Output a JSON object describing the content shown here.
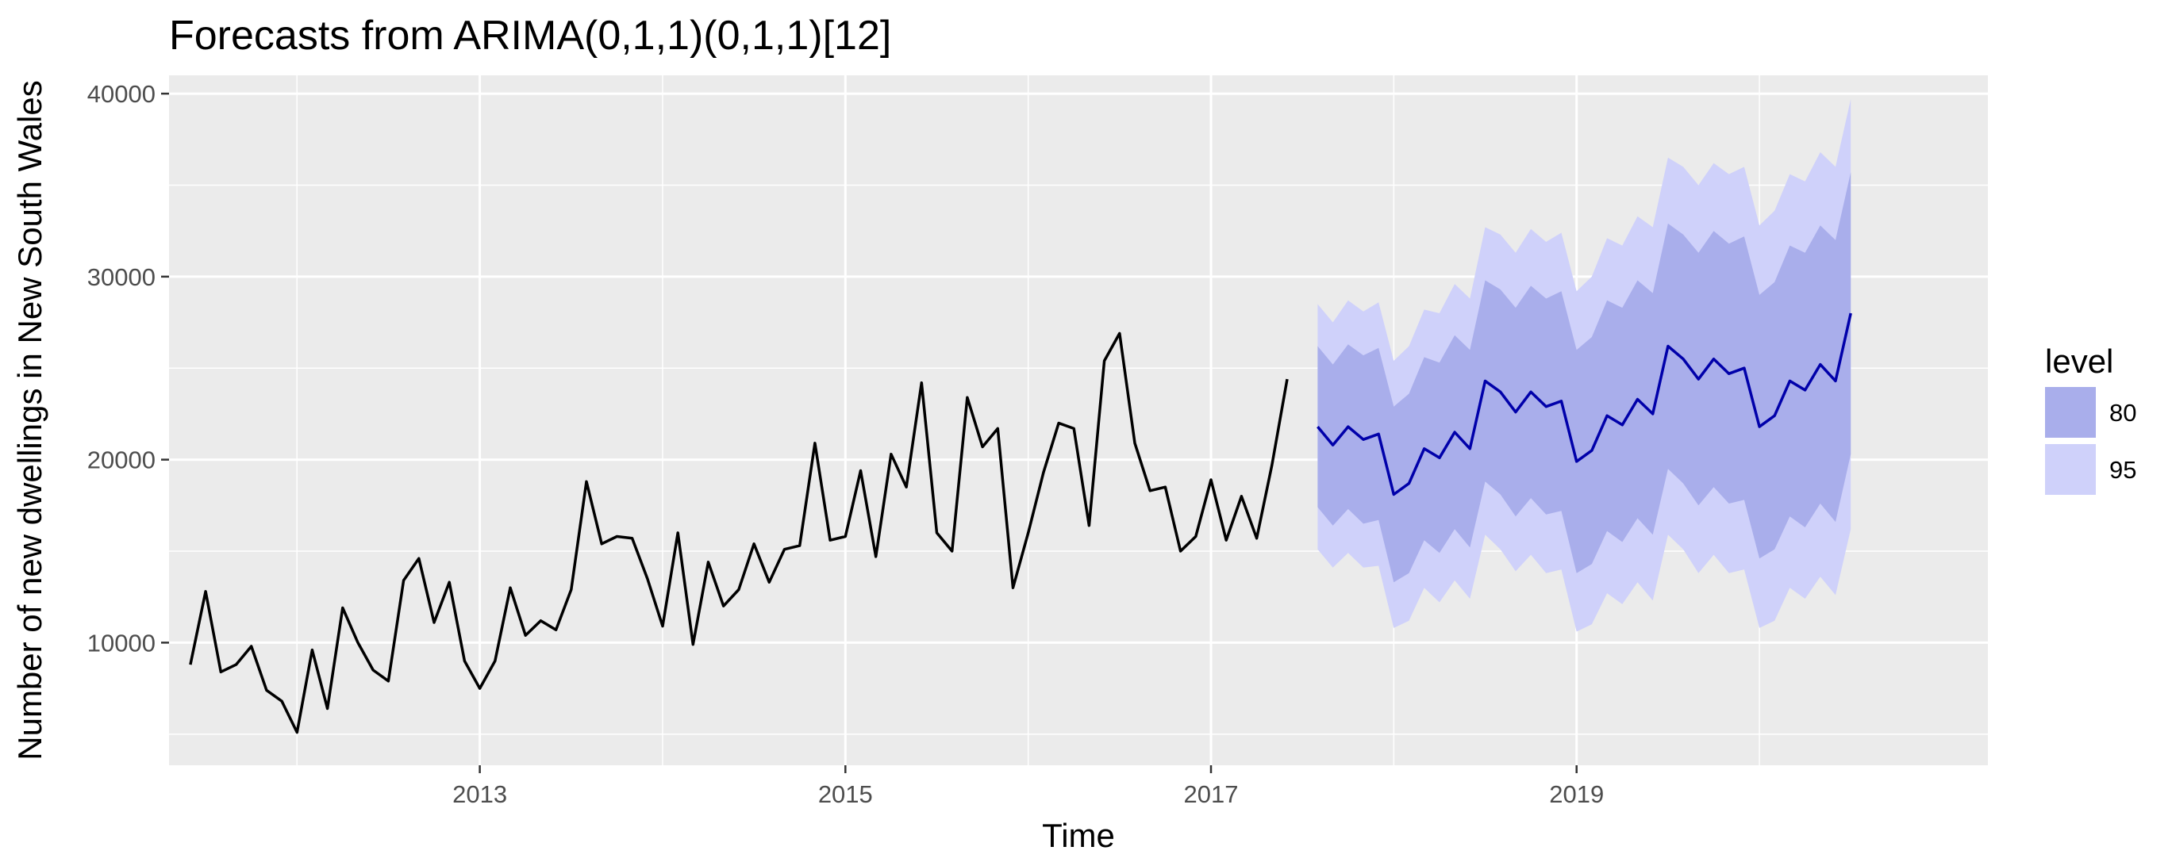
{
  "chart_data": {
    "type": "line",
    "title": "Forecasts from ARIMA(0,1,1)(0,1,1)[12]",
    "xlabel": "Time",
    "ylabel": "Number of new dwellings in New South Wales",
    "xlim": [
      2011.3,
      2021.25
    ],
    "ylim": [
      3300,
      41000
    ],
    "x_ticks": [
      2013,
      2015,
      2017,
      2019
    ],
    "x_tick_labels": [
      "2013",
      "2015",
      "2017",
      "2019"
    ],
    "y_ticks": [
      10000,
      20000,
      30000,
      40000
    ],
    "y_tick_labels": [
      "10000",
      "20000",
      "30000",
      "40000"
    ],
    "grid": true,
    "legend": {
      "title": "level",
      "position": "right",
      "entries": [
        {
          "label": "80",
          "color": "#a9aeeb"
        },
        {
          "label": "95",
          "color": "#cfd1fa"
        }
      ]
    },
    "colors": {
      "panel": "#ebebeb",
      "grid_major": "#ffffff",
      "observed_line": "#000000",
      "forecast_line": "#0000aa",
      "band_80": "#a9aeeb",
      "band_95": "#cfd1fa"
    },
    "observed": {
      "x_start": 2011.4167,
      "step": 0.0833333,
      "values": [
        8800,
        12800,
        8400,
        8800,
        9800,
        7400,
        6800,
        5100,
        9600,
        6400,
        11900,
        10000,
        8500,
        7900,
        13400,
        14600,
        11100,
        13300,
        9000,
        7500,
        9000,
        13000,
        10400,
        11200,
        10700,
        12900,
        18800,
        15400,
        15800,
        15700,
        13500,
        10900,
        16000,
        9900,
        14400,
        12000,
        12900,
        15400,
        13300,
        15100,
        15300,
        20900,
        15600,
        15800,
        19400,
        14700,
        20300,
        18500,
        24200,
        16000,
        15000,
        23400,
        20700,
        21700,
        13000,
        16000,
        19300,
        22000,
        21700,
        16400,
        25400,
        26900,
        20900,
        18300,
        18500,
        15000,
        15800,
        18900,
        15600,
        18000,
        15700,
        19700,
        24400
      ]
    },
    "forecast": {
      "x_start": 2017.5833,
      "step": 0.0833333,
      "mean": [
        21800,
        20800,
        21800,
        21100,
        21400,
        18100,
        18700,
        20600,
        20100,
        21500,
        20600,
        24300,
        23700,
        22600,
        23700,
        22900,
        23200,
        19900,
        20500,
        22400,
        21900,
        23300,
        22500,
        26200,
        25500,
        24400,
        25500,
        24700,
        25000,
        21800,
        22400,
        24300,
        23800,
        25200,
        24300,
        28000
      ],
      "lo80": [
        17400,
        16400,
        17300,
        16500,
        16700,
        13300,
        13800,
        15600,
        14900,
        16200,
        15200,
        18800,
        18100,
        16900,
        17900,
        17000,
        17200,
        13800,
        14300,
        16100,
        15500,
        16800,
        15900,
        19500,
        18700,
        17500,
        18500,
        17600,
        17800,
        14600,
        15100,
        16900,
        16300,
        17600,
        16600,
        20300
      ],
      "hi80": [
        26200,
        25200,
        26300,
        25700,
        26100,
        22900,
        23600,
        25600,
        25300,
        26800,
        26000,
        29800,
        29300,
        28300,
        29500,
        28800,
        29200,
        26000,
        26700,
        28700,
        28300,
        29800,
        29100,
        32900,
        32300,
        31300,
        32500,
        31800,
        32200,
        29000,
        29700,
        31700,
        31300,
        32800,
        32000,
        35700
      ],
      "lo95": [
        15100,
        14100,
        14900,
        14100,
        14200,
        10800,
        11200,
        13000,
        12200,
        13400,
        12400,
        15900,
        15100,
        13900,
        14800,
        13800,
        14000,
        10600,
        11000,
        12700,
        12100,
        13300,
        12300,
        15900,
        15100,
        13800,
        14800,
        13800,
        14000,
        10800,
        11200,
        13000,
        12400,
        13600,
        12600,
        16200
      ],
      "hi95": [
        28500,
        27500,
        28700,
        28100,
        28600,
        25400,
        26200,
        28200,
        28000,
        29600,
        28800,
        32700,
        32300,
        31300,
        32600,
        31900,
        32400,
        29200,
        30000,
        32100,
        31700,
        33300,
        32700,
        36500,
        36000,
        35000,
        36200,
        35600,
        36000,
        32800,
        33600,
        35600,
        35200,
        36800,
        36000,
        39700
      ]
    }
  }
}
